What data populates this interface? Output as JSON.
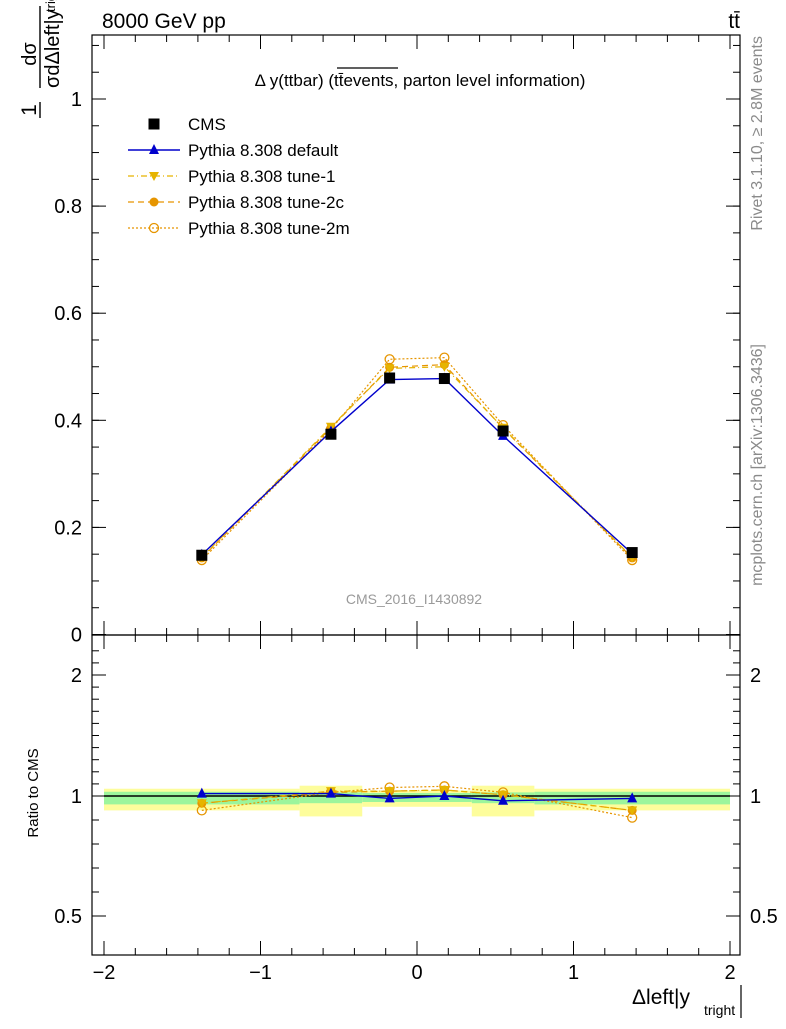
{
  "header": {
    "left": "8000 GeV pp",
    "right": "tt̄"
  },
  "side": {
    "rivet": "Rivet 3.1.10, ≥ 2.8M events",
    "mcplots": "mcplots.cern.ch [arXiv:1306.3436]"
  },
  "chart_data": [
    {
      "type": "line",
      "title": "Δ y(ttbar) (tt̄events, parton level information)",
      "ylabel_num": "dσ",
      "ylabel_den": "σdΔleft|y",
      "ylabel_den_sub": "tright",
      "ylim": [
        0,
        1.15
      ],
      "xlim": [
        -2,
        2
      ],
      "yticks": [
        "0",
        "0.2",
        "0.4",
        "0.6",
        "0.8",
        "1"
      ],
      "watermark": "CMS_2016_I1430892",
      "legend_position": "top-left",
      "grid": false,
      "x": [
        -1.375,
        -0.55,
        -0.175,
        0.175,
        0.55,
        1.375
      ],
      "series": [
        {
          "name": "CMS",
          "color": "#000000",
          "marker": "square",
          "values": [
            0.148,
            0.374,
            0.479,
            0.478,
            0.38,
            0.153
          ]
        },
        {
          "name": "Pythia 8.308 default",
          "color": "#0000cc",
          "marker": "triangle-up",
          "dash": "",
          "values": [
            0.149,
            0.379,
            0.476,
            0.478,
            0.371,
            0.151
          ]
        },
        {
          "name": "Pythia 8.308 tune-1",
          "color": "#e6b400",
          "marker": "triangle-down",
          "dash": "6 3 1 3",
          "values": [
            0.144,
            0.388,
            0.497,
            0.5,
            0.386,
            0.144
          ]
        },
        {
          "name": "Pythia 8.308 tune-2c",
          "color": "#e69500",
          "marker": "circle",
          "dash": "6 4",
          "values": [
            0.143,
            0.386,
            0.499,
            0.504,
            0.385,
            0.143
          ]
        },
        {
          "name": "Pythia 8.308 tune-2m",
          "color": "#e69500",
          "marker": "open-circle",
          "dash": "2 2",
          "values": [
            0.139,
            0.383,
            0.514,
            0.517,
            0.391,
            0.139
          ]
        }
      ]
    },
    {
      "type": "line",
      "ylabel": "Ratio to CMS",
      "xlabel": "Δleft|y",
      "xlabel_sub": "tright",
      "ylim": [
        0.35,
        2.3
      ],
      "xlim": [
        -2,
        2
      ],
      "yticks": [
        "0.5",
        "1",
        "2"
      ],
      "xticks": [
        "−2",
        "−1",
        "0",
        "1",
        "2"
      ],
      "x_edges": [
        -2,
        -0.75,
        -0.35,
        0,
        0.35,
        0.75,
        2
      ],
      "band_green_halfwidth": [
        0.035,
        0.03,
        0.025,
        0.025,
        0.03,
        0.035
      ],
      "band_yellow_halfwidth": [
        0.06,
        0.085,
        0.045,
        0.045,
        0.085,
        0.06
      ],
      "x": [
        -1.375,
        -0.55,
        -0.175,
        0.175,
        0.55,
        1.375
      ],
      "series": [
        {
          "name": "Pythia 8.308 default",
          "values": [
            1.02,
            1.02,
            0.99,
            1.0,
            0.98,
            0.99
          ]
        },
        {
          "name": "Pythia 8.308 tune-1",
          "values": [
            0.97,
            1.04,
            1.04,
            1.05,
            1.01,
            0.94
          ]
        },
        {
          "name": "Pythia 8.308 tune-2c",
          "values": [
            0.97,
            1.03,
            1.04,
            1.05,
            1.01,
            0.94
          ]
        },
        {
          "name": "Pythia 8.308 tune-2m",
          "values": [
            0.94,
            1.03,
            1.07,
            1.08,
            1.03,
            0.91
          ]
        }
      ]
    }
  ]
}
